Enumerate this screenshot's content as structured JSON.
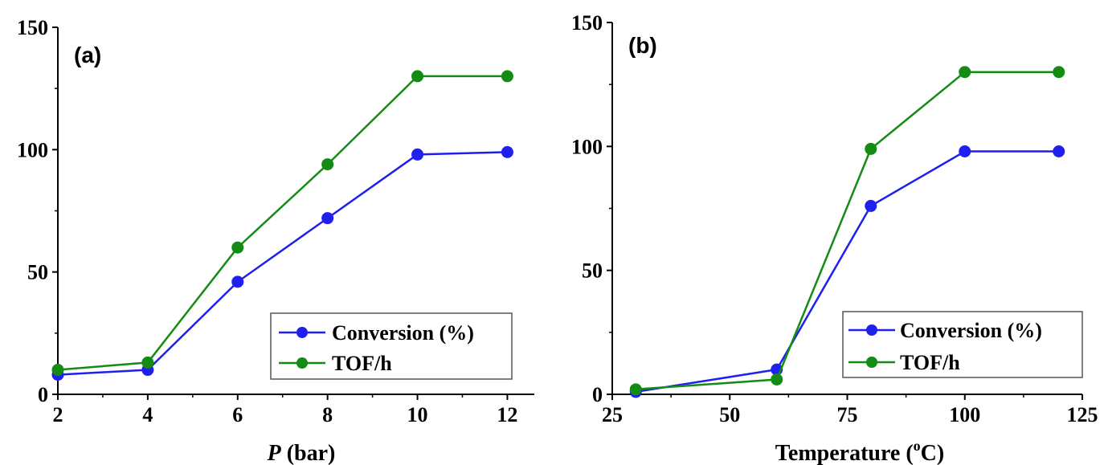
{
  "chart_data": [
    {
      "type": "line",
      "panel_label": "(a)",
      "title": "",
      "xlabel_italic": "P",
      "xlabel_rest": " (bar)",
      "ylabel": "",
      "xlim": [
        2,
        12.6
      ],
      "ylim": [
        0,
        150
      ],
      "xticks": [
        2,
        4,
        6,
        8,
        10,
        12
      ],
      "yticks": [
        0,
        50,
        100,
        150
      ],
      "x": [
        2,
        4,
        6,
        8,
        10,
        12
      ],
      "series": [
        {
          "name": "Conversion (%)",
          "color": "#1f1ff0",
          "values": [
            8,
            10,
            46,
            72,
            98,
            99
          ]
        },
        {
          "name": "TOF/h",
          "color": "#148c14",
          "values": [
            10,
            13,
            60,
            94,
            130,
            130
          ]
        }
      ],
      "legend_position": "bottom-right",
      "grid": false
    },
    {
      "type": "line",
      "panel_label": "(b)",
      "title": "",
      "xlabel_main": "Temperature (",
      "xlabel_sup": "o",
      "xlabel_end": "C)",
      "ylabel": "",
      "xlim": [
        25,
        125
      ],
      "ylim": [
        0,
        150
      ],
      "xticks": [
        25,
        50,
        75,
        100,
        125
      ],
      "yticks": [
        0,
        50,
        100,
        150
      ],
      "x": [
        30,
        60,
        80,
        100,
        120
      ],
      "series": [
        {
          "name": "Conversion (%)",
          "color": "#1f1ff0",
          "values": [
            1,
            10,
            76,
            98,
            98
          ]
        },
        {
          "name": "TOF/h",
          "color": "#148c14",
          "values": [
            2,
            6,
            99,
            130,
            130
          ]
        }
      ],
      "legend_position": "bottom-right",
      "grid": false
    }
  ]
}
